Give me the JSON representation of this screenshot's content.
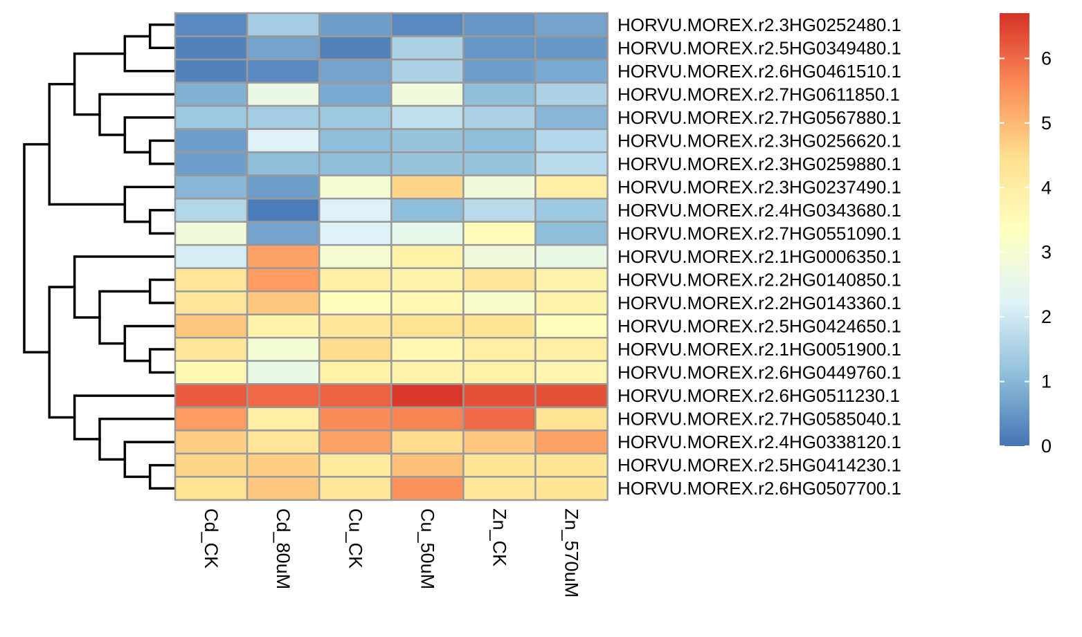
{
  "chart_data": {
    "type": "heatmap",
    "title": "",
    "columns": [
      "Cd_CK",
      "Cd_80uM",
      "Cu_CK",
      "Cu_50uM",
      "Zn_CK",
      "Zn_570uM"
    ],
    "rows": [
      "HORVU.MOREX.r2.3HG0252480.1",
      "HORVU.MOREX.r2.5HG0349480.1",
      "HORVU.MOREX.r2.6HG0461510.1",
      "HORVU.MOREX.r2.7HG0611850.1",
      "HORVU.MOREX.r2.7HG0567880.1",
      "HORVU.MOREX.r2.3HG0256620.1",
      "HORVU.MOREX.r2.3HG0259880.1",
      "HORVU.MOREX.r2.3HG0237490.1",
      "HORVU.MOREX.r2.4HG0343680.1",
      "HORVU.MOREX.r2.7HG0551090.1",
      "HORVU.MOREX.r2.1HG0006350.1",
      "HORVU.MOREX.r2.2HG0140850.1",
      "HORVU.MOREX.r2.2HG0143360.1",
      "HORVU.MOREX.r2.5HG0424650.1",
      "HORVU.MOREX.r2.1HG0051900.1",
      "HORVU.MOREX.r2.6HG0449760.1",
      "HORVU.MOREX.r2.6HG0511230.1",
      "HORVU.MOREX.r2.7HG0585040.1",
      "HORVU.MOREX.r2.4HG0338120.1",
      "HORVU.MOREX.r2.5HG0414230.1",
      "HORVU.MOREX.r2.6HG0507700.1"
    ],
    "values": [
      [
        0.3,
        1.4,
        0.6,
        0.3,
        0.5,
        0.7
      ],
      [
        0.2,
        0.7,
        0.2,
        1.5,
        0.5,
        0.5
      ],
      [
        0.2,
        0.3,
        0.7,
        1.5,
        0.6,
        0.8
      ],
      [
        0.9,
        2.6,
        0.8,
        2.8,
        1.1,
        1.5
      ],
      [
        1.3,
        1.4,
        1.3,
        1.8,
        1.5,
        1.0
      ],
      [
        0.6,
        2.2,
        1.1,
        1.2,
        1.1,
        1.6
      ],
      [
        0.6,
        1.1,
        1.1,
        1.2,
        1.2,
        1.7
      ],
      [
        1.0,
        0.6,
        3.0,
        4.6,
        2.8,
        4.0
      ],
      [
        1.6,
        0.1,
        2.2,
        1.1,
        1.7,
        1.3
      ],
      [
        2.8,
        0.7,
        2.2,
        2.5,
        3.5,
        1.1
      ],
      [
        2.1,
        5.3,
        3.0,
        3.9,
        2.8,
        2.6
      ],
      [
        4.2,
        5.4,
        4.0,
        3.8,
        4.2,
        3.8
      ],
      [
        4.2,
        4.8,
        3.4,
        3.6,
        3.1,
        3.8
      ],
      [
        4.8,
        3.8,
        4.2,
        4.4,
        4.3,
        3.4
      ],
      [
        4.2,
        2.9,
        4.5,
        3.6,
        4.0,
        4.0
      ],
      [
        3.6,
        2.6,
        3.9,
        3.8,
        3.9,
        3.7
      ],
      [
        6.2,
        6.0,
        6.1,
        6.6,
        6.3,
        6.3
      ],
      [
        5.4,
        4.0,
        5.6,
        5.7,
        6.0,
        4.4
      ],
      [
        4.7,
        4.2,
        5.3,
        4.5,
        4.8,
        5.3
      ],
      [
        4.6,
        4.7,
        4.1,
        4.9,
        4.3,
        4.3
      ],
      [
        4.4,
        4.8,
        4.2,
        5.5,
        4.2,
        4.3
      ]
    ],
    "row_order_note_free": true,
    "color_scale": {
      "min": 0,
      "max": 6.7,
      "stops": [
        "#4575b4",
        "#91bfdb",
        "#e0f3f8",
        "#ffffbf",
        "#fee090",
        "#fc8d59",
        "#d73027"
      ],
      "ticks": [
        0,
        1,
        2,
        3,
        4,
        5,
        6
      ]
    },
    "row_dendrogram": [
      [
        [
          [
            [
              0,
              1
            ],
            2
          ],
          [
            3,
            [
              4,
              [
                5,
                6
              ]
            ]
          ]
        ],
        [
          7,
          [
            8,
            9
          ]
        ]
      ],
      [
        [
          10,
          [
            [
              11,
              12
            ],
            [
              13,
              [
                14,
                15
              ]
            ]
          ]
        ],
        [
          16,
          [
            17,
            [
              18,
              [
                19,
                20
              ]
            ]
          ]
        ]
      ]
    ],
    "cell_border_color": "#999999",
    "legend_placement": "right"
  }
}
